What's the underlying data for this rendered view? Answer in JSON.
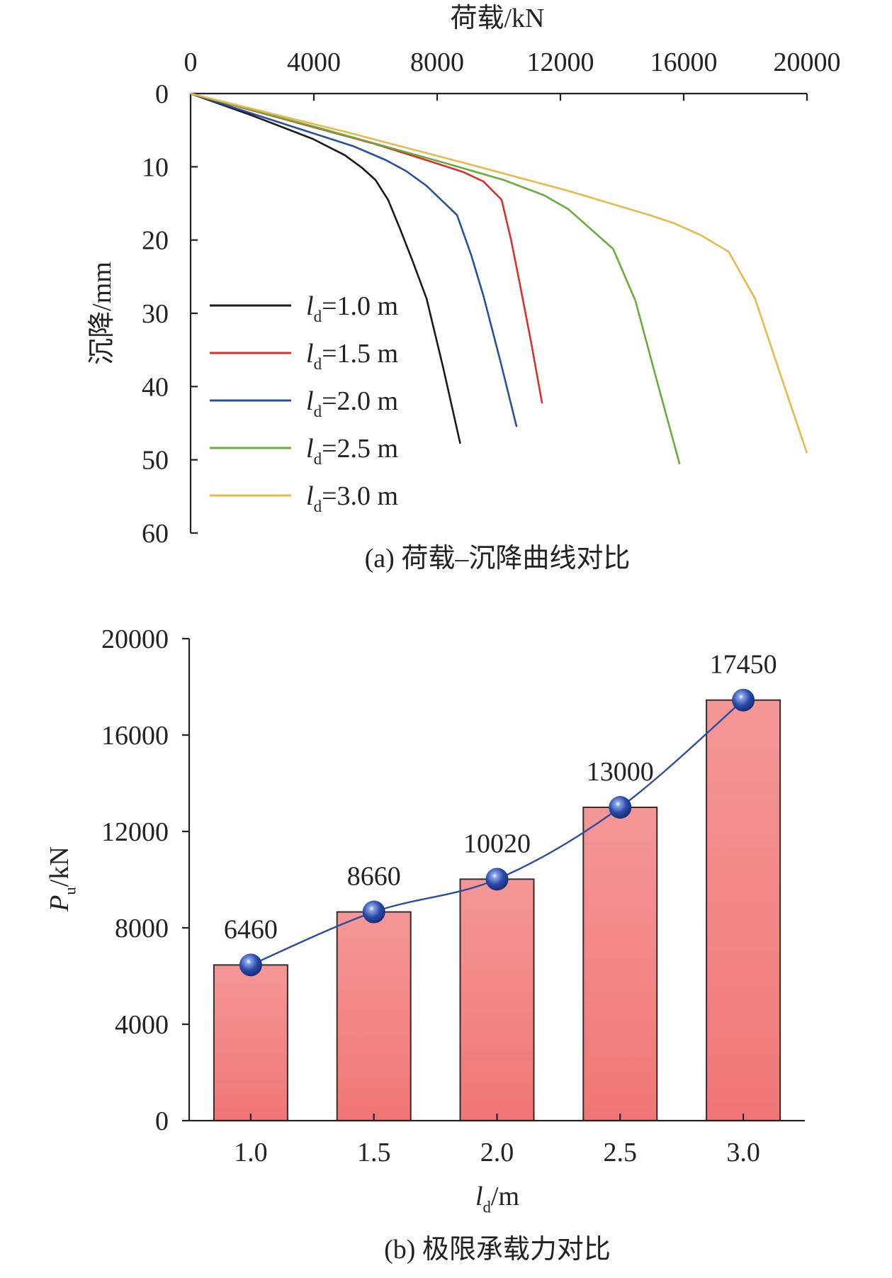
{
  "chart_data": [
    {
      "type": "line",
      "title": "",
      "caption": "(a) 荷载–沉降曲线对比",
      "xlabel": "荷载/kN",
      "ylabel": "沉降/mm",
      "xlim": [
        0,
        20000
      ],
      "ylim": [
        0,
        60
      ],
      "x_axis_position": "top",
      "y_inverted": true,
      "xticks": [
        0,
        4000,
        8000,
        12000,
        16000,
        20000
      ],
      "yticks": [
        0,
        10,
        20,
        30,
        40,
        50,
        60
      ],
      "grid": false,
      "legend_placement": "left",
      "series": [
        {
          "name": "ld=1.0 m",
          "label_var": "l",
          "label_sub": "d",
          "label_rest": "=1.0 m",
          "color": "#1a1a1a",
          "points": [
            [
              0,
              0
            ],
            [
              2000,
              3.0
            ],
            [
              3974,
              6.2
            ],
            [
              5000,
              8.4
            ],
            [
              5553,
              10.1
            ],
            [
              6000,
              11.8
            ],
            [
              6408,
              14.5
            ],
            [
              6800,
              18.5
            ],
            [
              7197,
              22.8
            ],
            [
              7658,
              28
            ],
            [
              8200,
              37.5
            ],
            [
              8750,
              47.8
            ]
          ]
        },
        {
          "name": "ld=1.5 m",
          "label_var": "l",
          "label_sub": "d",
          "label_rest": "=1.5 m",
          "color": "#d9302c",
          "points": [
            [
              0,
              0
            ],
            [
              4000,
              4.6
            ],
            [
              6000,
              6.9
            ],
            [
              7658,
              9.1
            ],
            [
              8842,
              10.7
            ],
            [
              9500,
              12
            ],
            [
              10092,
              14.5
            ],
            [
              10400,
              20
            ],
            [
              10684,
              26
            ],
            [
              11050,
              34
            ],
            [
              11408,
              42.3
            ]
          ]
        },
        {
          "name": "ld=2.0 m",
          "label_var": "l",
          "label_sub": "d",
          "label_rest": "=2.0 m",
          "color": "#2a4f9c",
          "points": [
            [
              0,
              0
            ],
            [
              3000,
              4.1
            ],
            [
              5290,
              7.2
            ],
            [
              6342,
              9.1
            ],
            [
              7000,
              10.6
            ],
            [
              7658,
              12.6
            ],
            [
              8645,
              16.6
            ],
            [
              9100,
              22
            ],
            [
              9500,
              27.6
            ],
            [
              10050,
              36.5
            ],
            [
              10580,
              45.5
            ]
          ]
        },
        {
          "name": "ld=2.5 m",
          "label_var": "l",
          "label_sub": "d",
          "label_rest": "=2.5 m",
          "color": "#6aab3e",
          "points": [
            [
              0,
              0
            ],
            [
              4000,
              4.5
            ],
            [
              8184,
              9.4
            ],
            [
              10158,
              11.8
            ],
            [
              11474,
              13.9
            ],
            [
              12263,
              15.8
            ],
            [
              13710,
              21.2
            ],
            [
              14434,
              28.3
            ],
            [
              15150,
              39.5
            ],
            [
              15868,
              50.6
            ]
          ]
        },
        {
          "name": "ld=3.0 m",
          "label_var": "l",
          "label_sub": "d",
          "label_rest": "=3.0 m",
          "color": "#e8b84a",
          "points": [
            [
              0,
              0
            ],
            [
              5000,
              5.2
            ],
            [
              9000,
              9.6
            ],
            [
              12263,
              13.3
            ],
            [
              14895,
              16.6
            ],
            [
              15684,
              17.7
            ],
            [
              16540,
              19.3
            ],
            [
              17460,
              21.6
            ],
            [
              18316,
              28
            ],
            [
              19150,
              38.5
            ],
            [
              20000,
              49.1
            ]
          ]
        }
      ]
    },
    {
      "type": "bar",
      "title": "",
      "caption": "(b) 极限承载力对比",
      "xlabel": {
        "var": "l",
        "sub": "d",
        "rest": "/m"
      },
      "ylabel": {
        "var": "P",
        "sub": "u",
        "rest": "/kN"
      },
      "categories": [
        "1.0",
        "1.5",
        "2.0",
        "2.5",
        "3.0"
      ],
      "values": [
        6460,
        8660,
        10020,
        13000,
        17450
      ],
      "data_labels": [
        "6460",
        "8660",
        "10020",
        "13000",
        "17450"
      ],
      "ylim": [
        0,
        20000
      ],
      "yticks": [
        0,
        4000,
        8000,
        12000,
        16000,
        20000
      ],
      "grid": false,
      "bar_color_top": "#f59797",
      "bar_color_bottom": "#f07676",
      "bar_border": "#3a2a2a",
      "overlay_line_color": "#2d4e9e",
      "marker_color": "#2a4aa8"
    }
  ]
}
